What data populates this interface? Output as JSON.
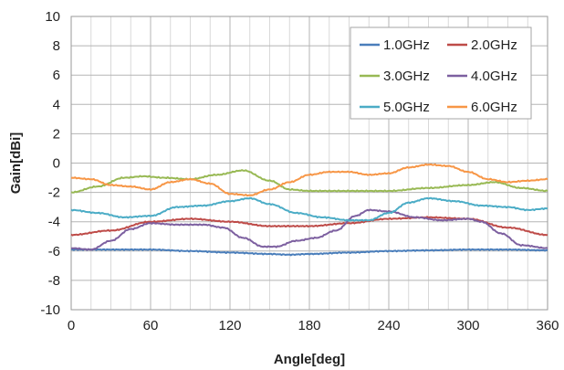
{
  "chart_data": {
    "type": "line",
    "title": "",
    "xlabel": "Angle[deg]",
    "ylabel": "Gain[dBi]",
    "xlim": [
      0,
      360
    ],
    "ylim": [
      -10,
      10
    ],
    "xticks": [
      0,
      60,
      120,
      180,
      240,
      300,
      360
    ],
    "yticks": [
      -10,
      -8,
      -6,
      -4,
      -2,
      0,
      2,
      4,
      6,
      8,
      10
    ],
    "grid": true,
    "legend_position": "top-right",
    "series": [
      {
        "name": "1.0GHz",
        "color": "#4a7ebb",
        "x": [
          0,
          30,
          60,
          90,
          120,
          150,
          165,
          180,
          210,
          240,
          270,
          300,
          330,
          360
        ],
        "y": [
          -5.9,
          -5.9,
          -5.9,
          -6.0,
          -6.1,
          -6.2,
          -6.25,
          -6.2,
          -6.1,
          -6.0,
          -5.95,
          -5.9,
          -5.9,
          -5.95
        ]
      },
      {
        "name": "2.0GHz",
        "color": "#be4b48",
        "x": [
          0,
          30,
          60,
          90,
          120,
          150,
          180,
          210,
          240,
          270,
          300,
          330,
          360
        ],
        "y": [
          -4.9,
          -4.6,
          -4.0,
          -3.8,
          -4.0,
          -4.3,
          -4.3,
          -4.1,
          -3.8,
          -3.7,
          -3.8,
          -4.4,
          -4.9
        ]
      },
      {
        "name": "3.0GHz",
        "color": "#98b954",
        "x": [
          0,
          20,
          40,
          55,
          70,
          90,
          110,
          130,
          150,
          165,
          180,
          210,
          240,
          270,
          300,
          320,
          340,
          360
        ],
        "y": [
          -2.0,
          -1.6,
          -1.0,
          -0.9,
          -1.0,
          -1.1,
          -0.8,
          -0.5,
          -1.2,
          -1.8,
          -1.9,
          -1.9,
          -1.9,
          -1.7,
          -1.5,
          -1.3,
          -1.7,
          -1.9
        ]
      },
      {
        "name": "4.0GHz",
        "color": "#7d60a0",
        "x": [
          0,
          15,
          30,
          45,
          60,
          80,
          100,
          115,
          130,
          145,
          155,
          170,
          185,
          200,
          215,
          225,
          240,
          260,
          280,
          300,
          310,
          325,
          340,
          360
        ],
        "y": [
          -5.8,
          -5.9,
          -5.3,
          -4.5,
          -4.1,
          -4.2,
          -4.2,
          -4.4,
          -5.1,
          -5.7,
          -5.7,
          -5.3,
          -5.1,
          -4.6,
          -3.6,
          -3.2,
          -3.3,
          -3.7,
          -3.9,
          -3.8,
          -4.0,
          -4.8,
          -5.6,
          -5.8
        ]
      },
      {
        "name": "5.0GHz",
        "color": "#4bacc6",
        "x": [
          0,
          20,
          40,
          60,
          80,
          100,
          120,
          135,
          150,
          170,
          190,
          210,
          225,
          240,
          255,
          270,
          290,
          310,
          330,
          345,
          360
        ],
        "y": [
          -3.2,
          -3.4,
          -3.7,
          -3.6,
          -3.0,
          -2.9,
          -2.6,
          -2.4,
          -2.8,
          -3.4,
          -3.7,
          -3.9,
          -3.9,
          -3.4,
          -2.7,
          -2.4,
          -2.6,
          -2.9,
          -3.0,
          -3.2,
          -3.1
        ]
      },
      {
        "name": "6.0GHz",
        "color": "#f79646",
        "x": [
          0,
          15,
          30,
          45,
          60,
          75,
          90,
          105,
          120,
          135,
          150,
          165,
          180,
          195,
          210,
          225,
          240,
          255,
          270,
          285,
          300,
          315,
          330,
          345,
          360
        ],
        "y": [
          -1.0,
          -1.1,
          -1.5,
          -1.6,
          -1.8,
          -1.3,
          -1.1,
          -1.4,
          -2.1,
          -2.2,
          -1.8,
          -1.3,
          -0.8,
          -0.6,
          -0.6,
          -0.8,
          -0.7,
          -0.3,
          -0.1,
          -0.2,
          -0.6,
          -1.1,
          -1.3,
          -1.2,
          -1.1
        ]
      }
    ]
  }
}
